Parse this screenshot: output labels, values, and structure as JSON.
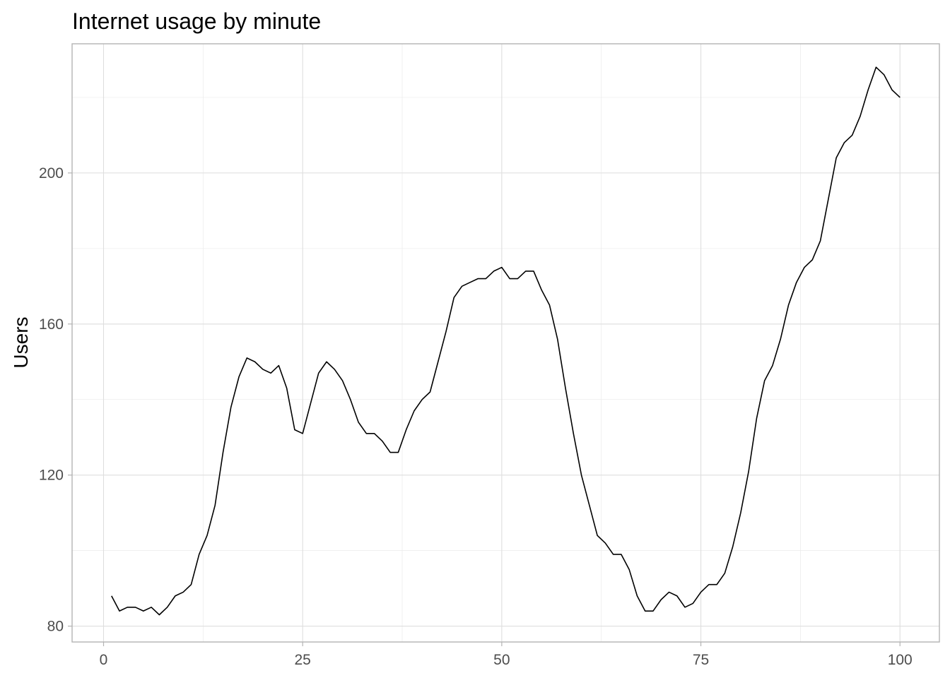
{
  "chart_data": {
    "type": "line",
    "title": "Internet usage by minute",
    "xlabel": "",
    "ylabel": "Users",
    "xlim": [
      -3.95,
      104.95
    ],
    "ylim": [
      75.8,
      234.2
    ],
    "x_ticks": [
      0,
      25,
      50,
      75,
      100
    ],
    "x_minor_ticks": [
      12.5,
      37.5,
      62.5,
      87.5
    ],
    "y_ticks": [
      80,
      120,
      160,
      200
    ],
    "y_minor_ticks": [
      100,
      140,
      180,
      220
    ],
    "grid": true,
    "legend": "none",
    "line_color": "#000000",
    "x": [
      1,
      2,
      3,
      4,
      5,
      6,
      7,
      8,
      9,
      10,
      11,
      12,
      13,
      14,
      15,
      16,
      17,
      18,
      19,
      20,
      21,
      22,
      23,
      24,
      25,
      26,
      27,
      28,
      29,
      30,
      31,
      32,
      33,
      34,
      35,
      36,
      37,
      38,
      39,
      40,
      41,
      42,
      43,
      44,
      45,
      46,
      47,
      48,
      49,
      50,
      51,
      52,
      53,
      54,
      55,
      56,
      57,
      58,
      59,
      60,
      61,
      62,
      63,
      64,
      65,
      66,
      67,
      68,
      69,
      70,
      71,
      72,
      73,
      74,
      75,
      76,
      77,
      78,
      79,
      80,
      81,
      82,
      83,
      84,
      85,
      86,
      87,
      88,
      89,
      90,
      91,
      92,
      93,
      94,
      95,
      96,
      97,
      98,
      99,
      100
    ],
    "values": [
      88,
      84,
      85,
      85,
      84,
      85,
      83,
      85,
      88,
      89,
      91,
      99,
      104,
      112,
      126,
      138,
      146,
      151,
      150,
      148,
      147,
      149,
      143,
      132,
      131,
      139,
      147,
      150,
      148,
      145,
      140,
      134,
      131,
      131,
      129,
      126,
      126,
      132,
      137,
      140,
      142,
      150,
      158,
      167,
      170,
      171,
      172,
      172,
      174,
      175,
      172,
      172,
      174,
      174,
      169,
      165,
      156,
      143,
      131,
      120,
      112,
      104,
      102,
      99,
      99,
      95,
      88,
      84,
      84,
      87,
      89,
      88,
      85,
      86,
      89,
      91,
      91,
      94,
      101,
      110,
      121,
      135,
      145,
      149,
      156,
      165,
      171,
      175,
      177,
      182,
      193,
      204,
      208,
      210,
      215,
      222,
      228,
      226,
      222,
      220
    ]
  }
}
